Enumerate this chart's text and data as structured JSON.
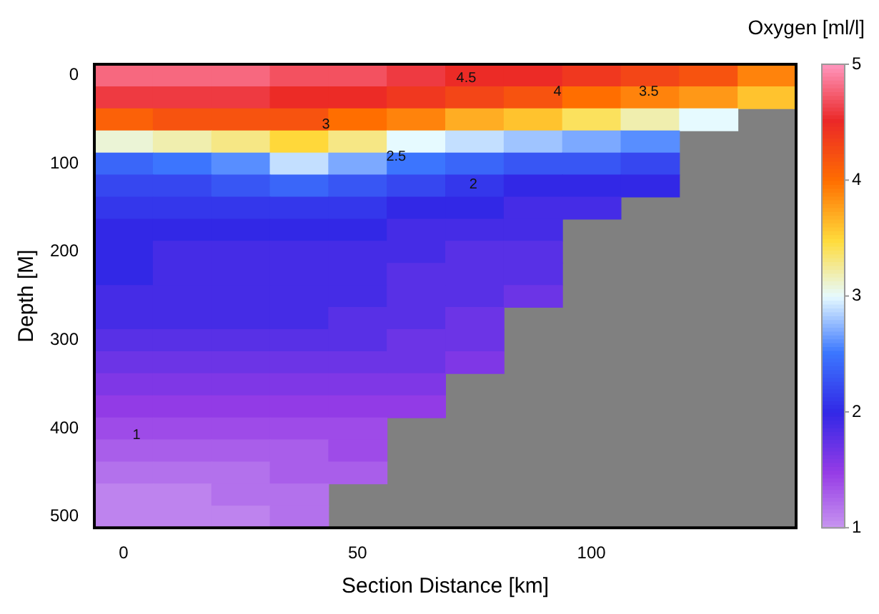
{
  "chart_data": {
    "type": "heatmap",
    "clabel": "Oxygen [ml/l]",
    "xlabel": "Section Distance [km]",
    "ylabel": "Depth [M]",
    "categories": [
      "0",
      null,
      null,
      null,
      "50",
      null,
      null,
      null,
      "100",
      null,
      null,
      null
    ],
    "y_categories": [
      "0",
      null,
      null,
      null,
      "100",
      null,
      null,
      null,
      "200",
      null,
      null,
      null,
      "300",
      null,
      null,
      null,
      "400",
      null,
      null,
      null,
      "500"
    ],
    "clim": [
      1,
      5
    ],
    "cticks": [
      1,
      2,
      3,
      4,
      5
    ],
    "cells": [
      [
        4.8,
        4.8,
        4.8,
        4.7,
        4.7,
        4.6,
        4.5,
        4.5,
        4.4,
        4.3,
        4.2,
        3.9
      ],
      [
        4.6,
        4.6,
        4.6,
        4.5,
        4.5,
        4.4,
        4.3,
        4.2,
        4.0,
        3.9,
        3.8,
        3.6
      ],
      [
        4.1,
        4.2,
        4.2,
        4.2,
        4.0,
        3.9,
        3.7,
        3.6,
        3.4,
        3.2,
        3.0,
        null
      ],
      [
        3.1,
        3.2,
        3.3,
        3.5,
        3.3,
        3.0,
        2.9,
        2.8,
        2.7,
        2.6,
        null,
        null
      ],
      [
        2.4,
        2.5,
        2.6,
        2.9,
        2.7,
        2.5,
        2.4,
        2.3,
        2.3,
        2.2,
        null,
        null
      ],
      [
        2.2,
        2.2,
        2.3,
        2.4,
        2.3,
        2.2,
        2.1,
        2.0,
        2.0,
        2.0,
        null,
        null
      ],
      [
        2.1,
        2.1,
        2.1,
        2.1,
        2.1,
        2.0,
        2.0,
        1.9,
        1.9,
        null,
        null,
        null
      ],
      [
        2.0,
        2.0,
        2.0,
        2.0,
        2.0,
        1.9,
        1.9,
        1.9,
        null,
        null,
        null,
        null
      ],
      [
        2.0,
        1.9,
        1.9,
        1.9,
        1.9,
        1.9,
        1.8,
        1.8,
        null,
        null,
        null,
        null
      ],
      [
        2.0,
        1.9,
        1.9,
        1.9,
        1.9,
        1.8,
        1.8,
        1.8,
        null,
        null,
        null,
        null
      ],
      [
        1.9,
        1.9,
        1.9,
        1.9,
        1.9,
        1.8,
        1.8,
        1.7,
        null,
        null,
        null,
        null
      ],
      [
        1.9,
        1.9,
        1.9,
        1.9,
        1.8,
        1.8,
        1.7,
        null,
        null,
        null,
        null,
        null
      ],
      [
        1.8,
        1.8,
        1.8,
        1.8,
        1.8,
        1.7,
        1.7,
        null,
        null,
        null,
        null,
        null
      ],
      [
        1.7,
        1.7,
        1.7,
        1.7,
        1.7,
        1.7,
        1.6,
        null,
        null,
        null,
        null,
        null
      ],
      [
        1.6,
        1.6,
        1.6,
        1.6,
        1.6,
        1.6,
        null,
        null,
        null,
        null,
        null,
        null
      ],
      [
        1.5,
        1.5,
        1.5,
        1.5,
        1.5,
        1.5,
        null,
        null,
        null,
        null,
        null,
        null
      ],
      [
        1.4,
        1.4,
        1.4,
        1.4,
        1.4,
        null,
        null,
        null,
        null,
        null,
        null,
        null
      ],
      [
        1.3,
        1.3,
        1.3,
        1.3,
        1.4,
        null,
        null,
        null,
        null,
        null,
        null,
        null
      ],
      [
        1.2,
        1.2,
        1.2,
        1.3,
        1.3,
        null,
        null,
        null,
        null,
        null,
        null,
        null
      ],
      [
        1.1,
        1.1,
        1.2,
        1.2,
        null,
        null,
        null,
        null,
        null,
        null,
        null,
        null
      ],
      [
        1.1,
        1.1,
        1.1,
        1.2,
        null,
        null,
        null,
        null,
        null,
        null,
        null,
        null
      ]
    ],
    "annotations": [
      "4.5",
      "4",
      "3.5",
      "3",
      "2.5",
      "2",
      "1"
    ]
  }
}
